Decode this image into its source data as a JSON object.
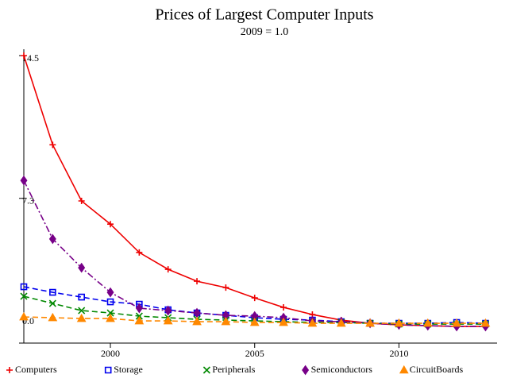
{
  "chart_data": {
    "type": "line",
    "title": "Prices of Largest Computer Inputs",
    "subtitle": "2009 = 1.0",
    "x": [
      1997,
      1998,
      1999,
      2000,
      2001,
      2002,
      2003,
      2004,
      2005,
      2006,
      2007,
      2008,
      2009,
      2010,
      2011,
      2012,
      2013
    ],
    "xlim": [
      1997,
      2013.4
    ],
    "xticks": [
      2000,
      2005,
      2010
    ],
    "ylim": [
      0,
      14.5
    ],
    "yticks": [
      {
        "value": 0,
        "label": "0.0"
      },
      7.3,
      14.5
    ],
    "legend": "bottom",
    "series": [
      {
        "name": "Computers",
        "color": "#ee0000",
        "marker": "plus",
        "dash": "solid",
        "values": [
          14.5,
          10.0,
          7.17,
          6.0,
          4.57,
          3.72,
          3.12,
          2.8,
          2.28,
          1.8,
          1.44,
          1.16,
          1.0,
          0.92,
          0.88,
          0.84,
          0.84
        ]
      },
      {
        "name": "Storage",
        "color": "#0000ee",
        "marker": "square",
        "dash": "dashed",
        "values": [
          2.84,
          2.56,
          2.32,
          2.08,
          1.96,
          1.68,
          1.52,
          1.4,
          1.28,
          1.2,
          1.16,
          1.08,
          1.0,
          1.0,
          1.0,
          1.04,
          1.0
        ]
      },
      {
        "name": "Peripherals",
        "color": "#008800",
        "marker": "cross",
        "dash": "dashed",
        "values": [
          2.36,
          2.0,
          1.64,
          1.52,
          1.36,
          1.28,
          1.2,
          1.16,
          1.12,
          1.08,
          1.04,
          1.04,
          1.0,
          0.96,
          0.96,
          0.96,
          0.96
        ]
      },
      {
        "name": "Semiconductors",
        "color": "#770088",
        "marker": "diamond",
        "dash": "dashdot",
        "values": [
          8.2,
          5.25,
          3.8,
          2.56,
          1.76,
          1.64,
          1.52,
          1.4,
          1.36,
          1.28,
          1.12,
          1.08,
          1.0,
          0.92,
          0.88,
          0.84,
          0.84
        ]
      },
      {
        "name": "CircuitBoards",
        "color": "#ff8800",
        "marker": "triangle",
        "dash": "dashed",
        "values": [
          1.32,
          1.28,
          1.24,
          1.24,
          1.12,
          1.12,
          1.08,
          1.08,
          1.04,
          1.04,
          1.0,
          1.0,
          1.0,
          1.0,
          1.0,
          1.0,
          1.0
        ]
      }
    ]
  }
}
